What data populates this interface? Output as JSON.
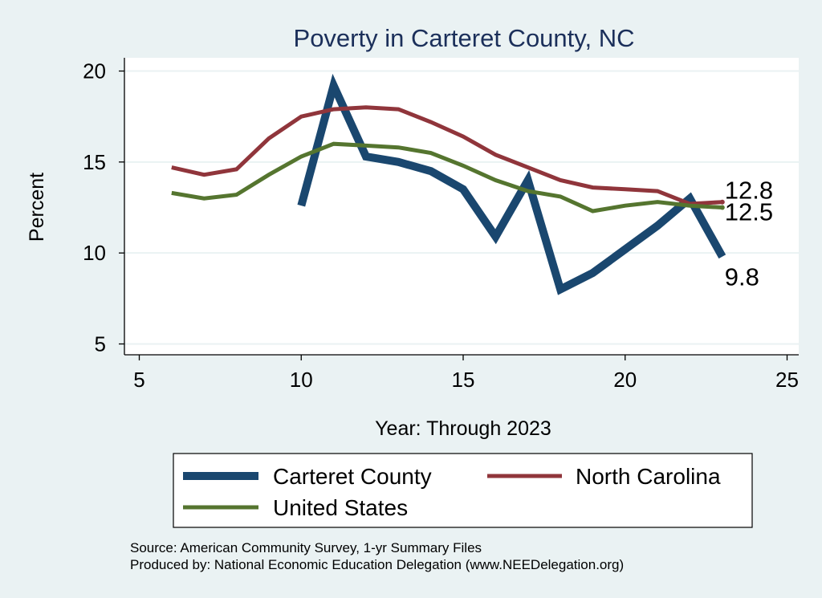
{
  "chart_data": {
    "type": "line",
    "title": "Poverty in Carteret County, NC",
    "xlabel": "Year: Through 2023",
    "ylabel": "Percent",
    "xlim": [
      5,
      25
    ],
    "ylim": [
      5,
      20
    ],
    "xticks": [
      5,
      10,
      15,
      20,
      25
    ],
    "yticks": [
      5,
      10,
      15,
      20
    ],
    "grid": true,
    "legend_position": "bottom",
    "series": [
      {
        "name": "Carteret County",
        "color": "#1a476f",
        "x": [
          10,
          11,
          12,
          13,
          14,
          15,
          16,
          17,
          18,
          19,
          20,
          21,
          22,
          23
        ],
        "values": [
          12.6,
          19.2,
          15.3,
          15.0,
          14.5,
          13.5,
          10.9,
          14.0,
          8.0,
          8.9,
          10.2,
          11.5,
          13.0,
          9.8
        ],
        "end_label": "9.8"
      },
      {
        "name": "North Carolina",
        "color": "#90353b",
        "x": [
          6,
          7,
          8,
          9,
          10,
          11,
          12,
          13,
          14,
          15,
          16,
          17,
          18,
          19,
          20,
          21,
          22,
          23
        ],
        "values": [
          14.7,
          14.3,
          14.6,
          16.3,
          17.5,
          17.9,
          18.0,
          17.9,
          17.2,
          16.4,
          15.4,
          14.7,
          14.0,
          13.6,
          13.5,
          13.4,
          12.7,
          12.8
        ],
        "end_label": "12.8"
      },
      {
        "name": "United States",
        "color": "#55752f",
        "x": [
          6,
          7,
          8,
          9,
          10,
          11,
          12,
          13,
          14,
          15,
          16,
          17,
          18,
          19,
          20,
          21,
          22,
          23
        ],
        "values": [
          13.3,
          13.0,
          13.2,
          14.3,
          15.3,
          16.0,
          15.9,
          15.8,
          15.5,
          14.8,
          14.0,
          13.4,
          13.1,
          12.3,
          12.6,
          12.8,
          12.6,
          12.5
        ],
        "end_label": "12.5"
      }
    ],
    "source_lines": [
      "Source: American Community Survey, 1-yr Summary Files",
      "Produced by: National Economic Education Delegation (www.NEEDelegation.org)"
    ]
  }
}
